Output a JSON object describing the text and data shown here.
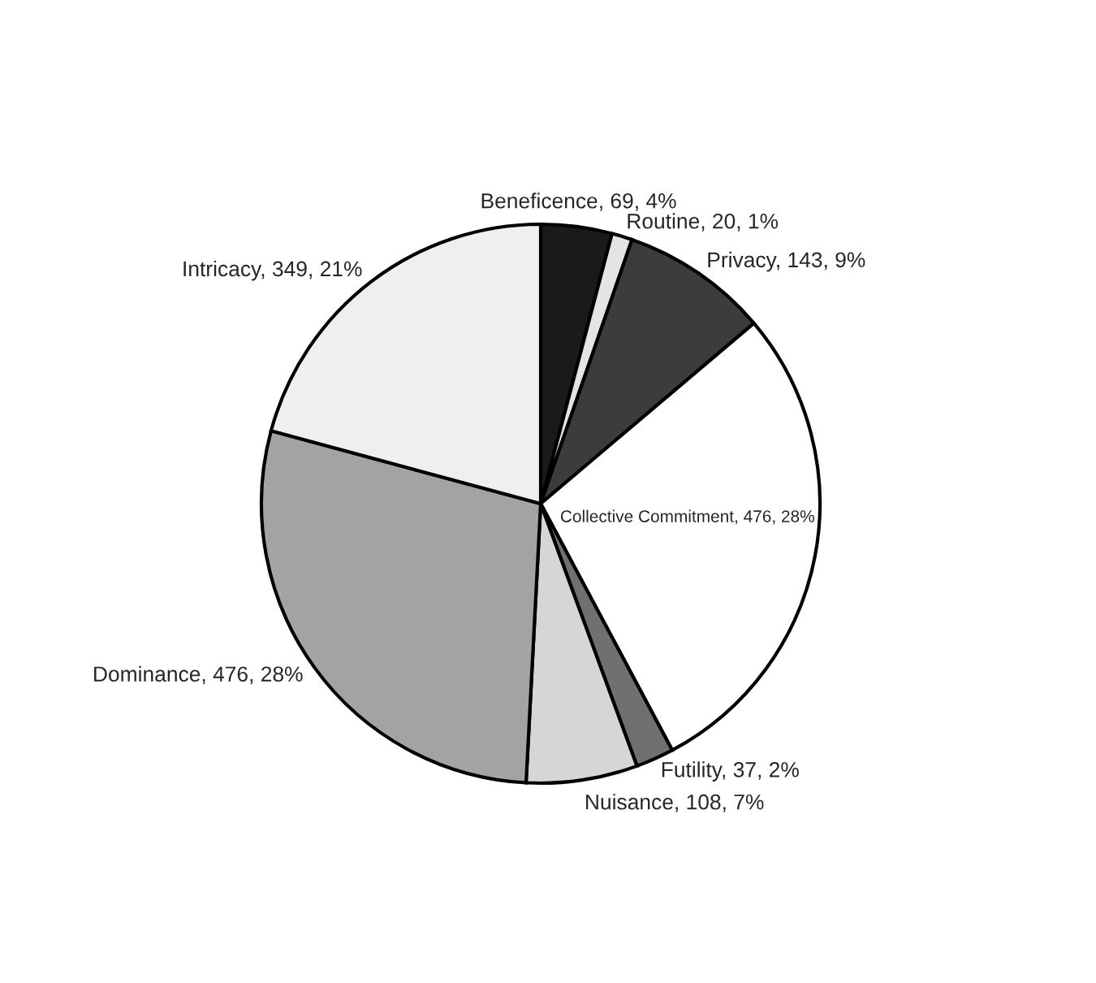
{
  "chart_data": {
    "type": "pie",
    "categories": [
      "Beneficence",
      "Routine",
      "Privacy",
      "Collective Commitment",
      "Futility",
      "Nuisance",
      "Dominance",
      "Intricacy"
    ],
    "values": [
      69,
      20,
      143,
      476,
      37,
      108,
      476,
      349
    ],
    "value_labels": [
      "69, 4%",
      "20, 1%",
      "143, 9%",
      "476, 28%",
      "37, 2%",
      "108, 7%",
      "476, 28%",
      "349, 21%"
    ],
    "colors": [
      "#1a1a1a",
      "#e4e4e4",
      "#3c3c3c",
      "#ffffff",
      "#707070",
      "#d6d6d6",
      "#a3a3a3",
      "#efefef"
    ]
  }
}
